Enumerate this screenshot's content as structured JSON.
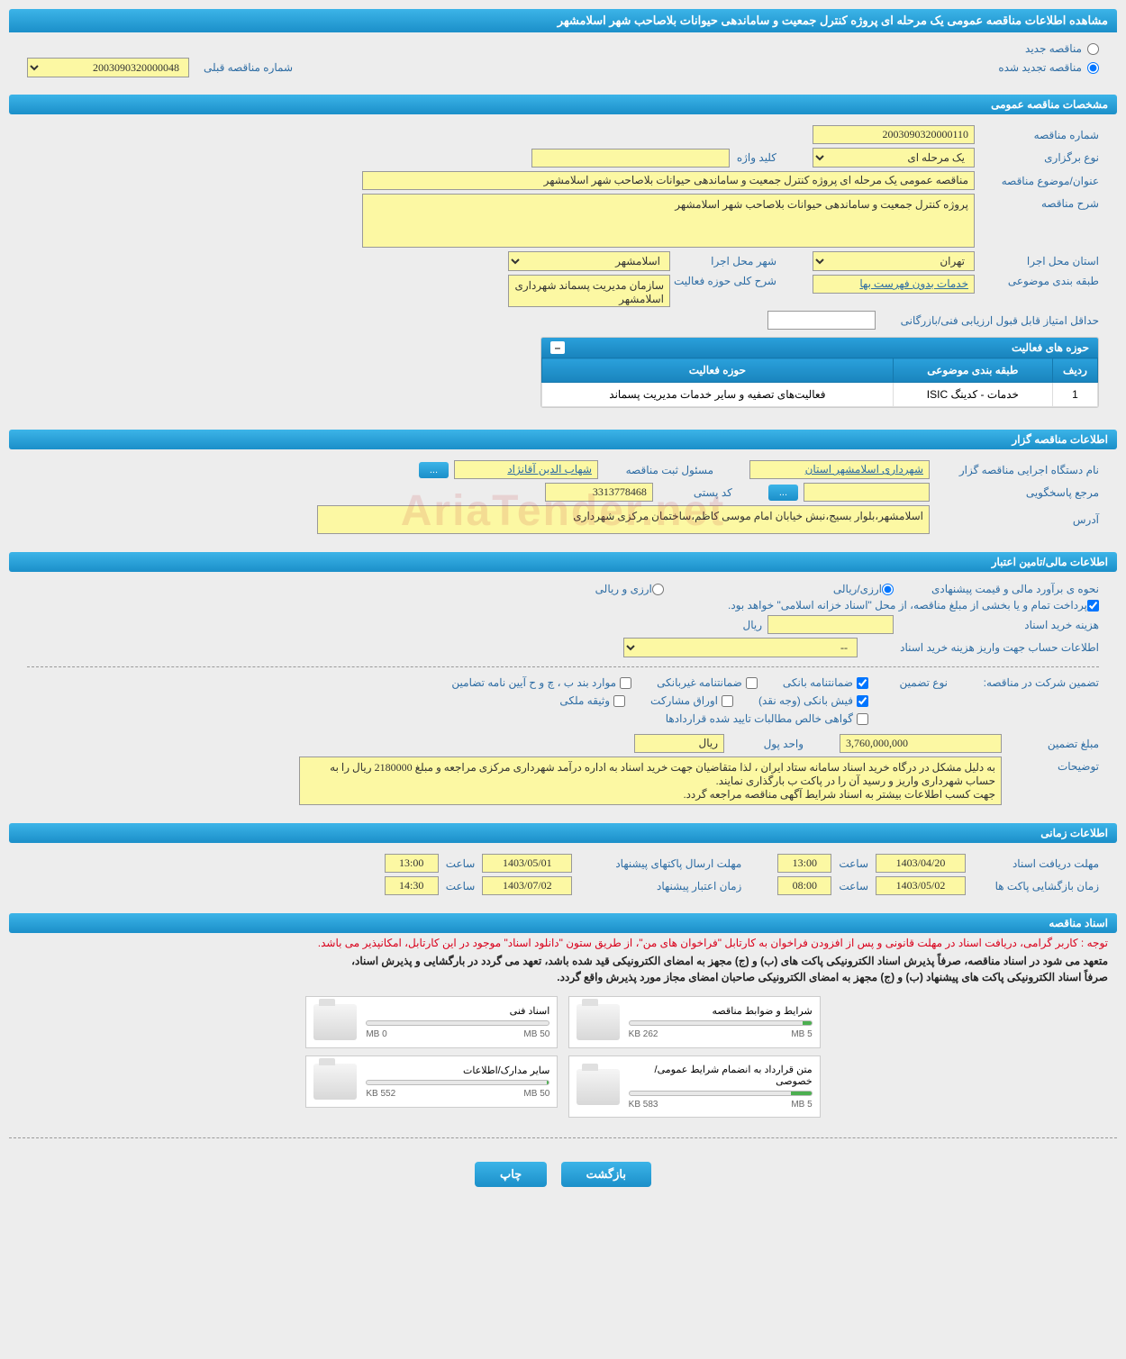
{
  "page_title": "مشاهده اطلاعات مناقصه عمومی یک مرحله ای پروژه کنترل جمعیت و ساماندهی حیوانات بلاصاحب شهر اسلامشهر",
  "radio": {
    "new_tender": "مناقصه جدید",
    "renewed_tender": "مناقصه تجدید شده"
  },
  "prev_tender": {
    "label": "شماره مناقصه قبلی",
    "value": "2003090320000048"
  },
  "sections": {
    "general": "مشخصات مناقصه عمومی",
    "organizer": "اطلاعات مناقصه گزار",
    "financial": "اطلاعات مالی/تامین اعتبار",
    "timing": "اطلاعات زمانی",
    "documents": "اسناد مناقصه"
  },
  "general": {
    "tender_no_label": "شماره مناقصه",
    "tender_no": "2003090320000110",
    "type_label": "نوع برگزاری",
    "type": "یک مرحله ای",
    "keyword_label": "کلید واژه",
    "keyword": "",
    "subject_label": "عنوان/موضوع مناقصه",
    "subject": "مناقصه عمومی یک مرحله ای پروژه کنترل جمعیت و ساماندهی حیوانات بلاصاحب شهر اسلامشهر",
    "desc_label": "شرح مناقصه",
    "desc": "پروژه کنترل جمعیت و ساماندهی حیوانات بلاصاحب شهر اسلامشهر",
    "province_label": "استان محل اجرا",
    "province": "تهران",
    "city_label": "شهر محل اجرا",
    "city": "اسلامشهر",
    "category_label": "طبقه بندی موضوعی",
    "category": "خدمات بدون فهرست بها",
    "activity_desc_label": "شرح کلی حوزه فعالیت",
    "activity_desc": "سازمان مدیریت پسماند شهرداری اسلامشهر",
    "min_score_label": "حداقل امتیاز قابل قبول ارزیابی فنی/بازرگانی",
    "min_score": ""
  },
  "activity_table": {
    "title": "حوزه های فعالیت",
    "cols": {
      "row": "ردیف",
      "category": "طبقه بندی موضوعی",
      "field": "حوزه فعالیت"
    },
    "row1": {
      "no": "1",
      "category": "خدمات - کدینگ ISIC",
      "field": "فعالیت‌های تصفیه و سایر خدمات مدیریت پسماند"
    }
  },
  "organizer": {
    "org_label": "نام دستگاه اجرایی مناقصه گزار",
    "org": "شهرداری اسلامشهر استان",
    "reg_officer_label": "مسئول ثبت مناقصه",
    "reg_officer": "شهاب الدین آقانژاد",
    "contact_label": "مرجع پاسخگویی",
    "contact": "",
    "postal_label": "کد پستی",
    "postal": "3313778468",
    "address_label": "آدرس",
    "address": "اسلامشهر،بلوار بسیج،نبش خیابان امام موسی کاظم،ساختمان مرکزی شهرداری",
    "more_btn": "..."
  },
  "financial": {
    "method_label": "نحوه ی برآورد مالی و قیمت پیشنهادی",
    "r1": "ارزی/ریالی",
    "r2": "ارزی و ریالی",
    "payment_note": "پرداخت تمام و یا بخشی از مبلغ مناقصه، از محل \"اسناد خزانه اسلامی\" خواهد بود.",
    "doc_cost_label": "هزینه خرید اسناد",
    "unit_riyal": "ریال",
    "account_label": "اطلاعات حساب جهت واریز هزینه خرید اسناد",
    "account_val": "--",
    "guarantee_section": "تضمین شرکت در مناقصه:",
    "guarantee_type_label": "نوع تضمین",
    "g1": "ضمانتنامه بانکی",
    "g2": "ضمانتنامه غیربانکی",
    "g3": "موارد بند ب ، چ و ح آیین نامه تضامین",
    "g4": "فیش بانکی (وجه نقد)",
    "g5": "اوراق مشارکت",
    "g6": "وثیقه ملکی",
    "g7": "گواهی خالص مطالبات تایید شده قراردادها",
    "amount_label": "مبلغ تضمین",
    "amount": "3,760,000,000",
    "currency_label": "واحد پول",
    "currency": "ریال",
    "notes_label": "توضیحات",
    "notes": "به دلیل مشکل در درگاه خرید اسناد سامانه ستاد ایران ، لذا متقاضیان جهت خرید اسناد به اداره درآمد شهرداری مرکزی مراجعه و مبلغ 2180000 ریال را به حساب شهرداری واریز و رسید آن را در پاکت ب بارگذاری نمایند.\nجهت کسب اطلاعات بیشتر به اسناد شرایط آگهی مناقصه مراجعه گردد."
  },
  "timing": {
    "receive_label": "مهلت دریافت اسناد",
    "receive_date": "1403/04/20",
    "receive_time": "13:00",
    "send_label": "مهلت ارسال پاکتهای پیشنهاد",
    "send_date": "1403/05/01",
    "send_time": "13:00",
    "open_label": "زمان بازگشایی پاکت ها",
    "open_date": "1403/05/02",
    "open_time": "08:00",
    "validity_label": "زمان اعتبار پیشنهاد",
    "validity_date": "1403/07/02",
    "validity_time": "14:30",
    "time_label": "ساعت"
  },
  "documents": {
    "warning1": "توجه : کاربر گرامی، دریافت اسناد در مهلت قانونی و پس از افزودن فراخوان به کارتابل \"فراخوان های من\"، از طریق ستون \"دانلود اسناد\" موجود در این کارتابل، امکانپذیر می باشد.",
    "warning2": "متعهد می شود در اسناد مناقصه، صرفاً پذیرش اسناد الکترونیکی پاکت های (ب) و (ج) مجهز به امضای الکترونیکی قید شده باشد، تعهد می گردد در بارگشایی و پذیرش اسناد،",
    "warning3": "صرفاً اسناد الکترونیکی پاکت های پیشنهاد (ب) و (ج) مجهز به امضای الکترونیکی صاحبان امضای مجاز مورد پذیرش واقع گردد.",
    "cards": [
      {
        "title": "شرایط و ضوابط مناقصه",
        "size_used": "262 KB",
        "size_total": "5 MB",
        "progress": 5
      },
      {
        "title": "اسناد فنی",
        "size_used": "0 MB",
        "size_total": "50 MB",
        "progress": 0
      },
      {
        "title": "متن قرارداد به انضمام شرایط عمومی/خصوصی",
        "size_used": "583 KB",
        "size_total": "5 MB",
        "progress": 11
      },
      {
        "title": "سایر مدارک/اطلاعات",
        "size_used": "552 KB",
        "size_total": "50 MB",
        "progress": 1
      }
    ]
  },
  "footer": {
    "back": "بازگشت",
    "print": "چاپ"
  },
  "watermark": "AriaTender.net"
}
